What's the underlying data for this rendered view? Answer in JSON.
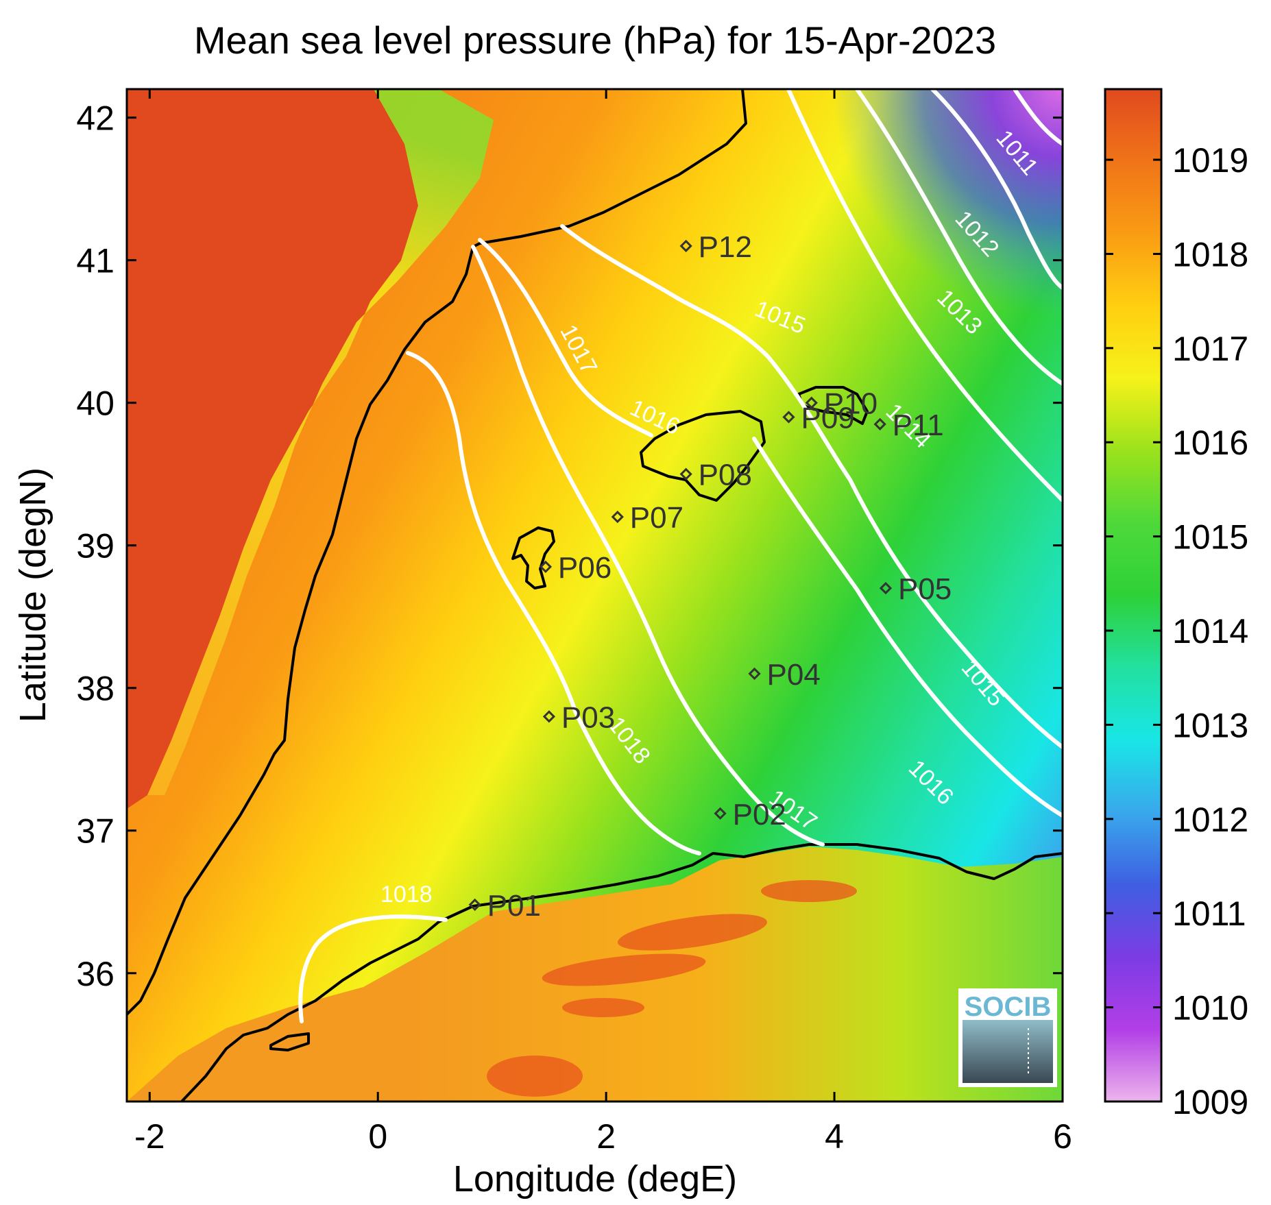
{
  "title": "Mean sea level pressure (hPa) for 15-Apr-2023",
  "x_axis": {
    "label": "Longitude (degE)",
    "ticks": [
      {
        "value": -2,
        "label": "-2"
      },
      {
        "value": 0,
        "label": "0"
      },
      {
        "value": 2,
        "label": "2"
      },
      {
        "value": 4,
        "label": "4"
      },
      {
        "value": 6,
        "label": "6"
      }
    ],
    "range": [
      -2.2,
      6.0
    ]
  },
  "y_axis": {
    "label": "Latitude (degN)",
    "ticks": [
      {
        "value": 36,
        "label": "36"
      },
      {
        "value": 37,
        "label": "37"
      },
      {
        "value": 38,
        "label": "38"
      },
      {
        "value": 39,
        "label": "39"
      },
      {
        "value": 40,
        "label": "40"
      },
      {
        "value": 41,
        "label": "41"
      },
      {
        "value": 42,
        "label": "42"
      }
    ],
    "range": [
      35.1,
      42.2
    ]
  },
  "colorbar": {
    "range": [
      1009,
      1019.75
    ],
    "tick_values": [
      1009,
      1010,
      1011,
      1012,
      1013,
      1014,
      1015,
      1016,
      1017,
      1018,
      1019
    ],
    "tick_labels": [
      "1009",
      "1010",
      "1011",
      "1012",
      "1013",
      "1014",
      "1015",
      "1016",
      "1017",
      "1018",
      "1019"
    ],
    "colors": [
      "#ecb4ec",
      "#b23ee6",
      "#7c3ce4",
      "#3f5fe2",
      "#39a8ec",
      "#19e6e6",
      "#22e0a0",
      "#2ed138",
      "#4ed93a",
      "#9be21c",
      "#f6f21a",
      "#ffcf10",
      "#fa9c14",
      "#f07418",
      "#e04a1e"
    ]
  },
  "stations": [
    {
      "id": "P01",
      "label": "P01",
      "lon": 0.85,
      "lat": 36.48
    },
    {
      "id": "P02",
      "label": "P02",
      "lon": 3.0,
      "lat": 37.12
    },
    {
      "id": "P03",
      "label": "P03",
      "lon": 1.5,
      "lat": 37.8
    },
    {
      "id": "P04",
      "label": "P04",
      "lon": 3.3,
      "lat": 38.1
    },
    {
      "id": "P05",
      "label": "P05",
      "lon": 4.45,
      "lat": 38.7
    },
    {
      "id": "P06",
      "label": "P06",
      "lon": 1.47,
      "lat": 38.85
    },
    {
      "id": "P07",
      "label": "P07",
      "lon": 2.1,
      "lat": 39.2
    },
    {
      "id": "P08",
      "label": "P08",
      "lon": 2.7,
      "lat": 39.5
    },
    {
      "id": "P09",
      "label": "P09",
      "lon": 3.6,
      "lat": 39.9
    },
    {
      "id": "P10",
      "label": "P10",
      "lon": 3.8,
      "lat": 40.0
    },
    {
      "id": "P11",
      "label": "P11",
      "lon": 4.4,
      "lat": 39.85
    },
    {
      "id": "P12",
      "label": "P12",
      "lon": 2.7,
      "lat": 41.1
    }
  ],
  "contour_labels": [
    {
      "text": "1011",
      "lon": 5.55,
      "lat": 41.72,
      "angle": 50
    },
    {
      "text": "1012",
      "lon": 5.2,
      "lat": 41.15,
      "angle": 48
    },
    {
      "text": "1013",
      "lon": 5.05,
      "lat": 40.6,
      "angle": 45
    },
    {
      "text": "1014",
      "lon": 4.6,
      "lat": 39.8,
      "angle": 45
    },
    {
      "text": "1015",
      "lon": 3.5,
      "lat": 40.55,
      "angle": 22
    },
    {
      "text": "1015",
      "lon": 5.25,
      "lat": 38.0,
      "angle": 50
    },
    {
      "text": "1016",
      "lon": 2.4,
      "lat": 39.85,
      "angle": 25
    },
    {
      "text": "1016",
      "lon": 4.8,
      "lat": 37.3,
      "angle": 45
    },
    {
      "text": "1017",
      "lon": 1.7,
      "lat": 40.35,
      "angle": 62
    },
    {
      "text": "1017",
      "lon": 3.6,
      "lat": 37.1,
      "angle": 35
    },
    {
      "text": "1018",
      "lon": 2.15,
      "lat": 37.6,
      "angle": 52
    },
    {
      "text": "1018",
      "lon": 0.25,
      "lat": 36.5,
      "angle": 0
    }
  ],
  "logo": {
    "text": "SOCIB"
  }
}
